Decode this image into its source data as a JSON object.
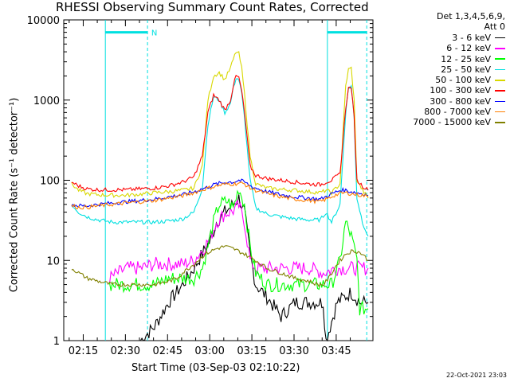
{
  "chart_data": {
    "type": "line",
    "title": "RHESSI Observing Summary Count Rates, Corrected",
    "detector_note_1": "Det 1,3,4,5,6,9,",
    "detector_note_2": "Att 0",
    "xlabel": "Start Time (03-Sep-03 02:10:22)",
    "ylabel": "Corrected Count Rate (s⁻¹ detector⁻¹)",
    "timestamp": "22-Oct-2021 23:03",
    "y_scale": "log",
    "ylim": [
      1,
      10000
    ],
    "xlim_minutes": [
      2.3,
      50.0
    ],
    "y_ticks": [
      {
        "value": 1,
        "label": "1"
      },
      {
        "value": 10,
        "label": "10"
      },
      {
        "value": 100,
        "label": "100"
      },
      {
        "value": 1000,
        "label": "1000"
      },
      {
        "value": 10000,
        "label": "10000"
      }
    ],
    "x_ticks": [
      {
        "minute": 15,
        "label": "02:15"
      },
      {
        "minute": 30,
        "label": "02:30"
      },
      {
        "minute": 45,
        "label": "02:45"
      },
      {
        "minute": 60,
        "label": "03:00"
      },
      {
        "minute": 75,
        "label": "03:15"
      },
      {
        "minute": 90,
        "label": "03:30"
      },
      {
        "minute": 105,
        "label": "03:45"
      }
    ],
    "annotations": [
      {
        "text": "N",
        "minute": 28
      }
    ],
    "markers": {
      "dashed_cyan_minutes": [
        27.5,
        105.5
      ],
      "solid_cyan_minutes": [
        12.5,
        91.5
      ],
      "bars_y": 7000,
      "bars_minutes": [
        [
          12.5,
          27.5
        ],
        [
          91.5,
          105.5
        ]
      ]
    },
    "series": [
      {
        "name": "3 - 6 keV",
        "color": "#000000",
        "points": [
          [
            25,
            1
          ],
          [
            30,
            1.5
          ],
          [
            35,
            3
          ],
          [
            40,
            5
          ],
          [
            44,
            8
          ],
          [
            48,
            14
          ],
          [
            50,
            18
          ],
          [
            52,
            30
          ],
          [
            55,
            40
          ],
          [
            58,
            50
          ],
          [
            60,
            60
          ],
          [
            62,
            40
          ],
          [
            64,
            12
          ],
          [
            66,
            5
          ],
          [
            70,
            3.5
          ],
          [
            75,
            2
          ],
          [
            80,
            3
          ],
          [
            85,
            3
          ],
          [
            90,
            3
          ],
          [
            91,
            1
          ],
          [
            95,
            3
          ],
          [
            100,
            4
          ],
          [
            103,
            3
          ],
          [
            106,
            3
          ]
        ]
      },
      {
        "name": "6 - 12 keV",
        "color": "#ff00ff",
        "points": [
          [
            14,
            6
          ],
          [
            20,
            8
          ],
          [
            25,
            8
          ],
          [
            30,
            9
          ],
          [
            35,
            9
          ],
          [
            40,
            9
          ],
          [
            44,
            10
          ],
          [
            48,
            15
          ],
          [
            50,
            20
          ],
          [
            52,
            30
          ],
          [
            55,
            38
          ],
          [
            58,
            42
          ],
          [
            60,
            48
          ],
          [
            62,
            30
          ],
          [
            64,
            10
          ],
          [
            66,
            8
          ],
          [
            70,
            8
          ],
          [
            75,
            8
          ],
          [
            80,
            8
          ],
          [
            85,
            8
          ],
          [
            90,
            7
          ],
          [
            95,
            8
          ],
          [
            100,
            8
          ],
          [
            104,
            8
          ],
          [
            106,
            8
          ]
        ]
      },
      {
        "name": "12 - 25 keV",
        "color": "#00ff00",
        "points": [
          [
            14,
            5
          ],
          [
            20,
            5
          ],
          [
            25,
            5
          ],
          [
            30,
            5
          ],
          [
            35,
            6
          ],
          [
            40,
            6
          ],
          [
            44,
            6
          ],
          [
            47,
            8
          ],
          [
            49,
            15
          ],
          [
            51,
            30
          ],
          [
            53,
            50
          ],
          [
            56,
            55
          ],
          [
            58,
            45
          ],
          [
            60,
            80
          ],
          [
            62,
            50
          ],
          [
            64,
            15
          ],
          [
            66,
            7
          ],
          [
            70,
            5
          ],
          [
            75,
            5
          ],
          [
            80,
            5
          ],
          [
            85,
            5
          ],
          [
            90,
            5
          ],
          [
            93,
            5
          ],
          [
            96,
            10
          ],
          [
            98,
            30
          ],
          [
            100,
            20
          ],
          [
            102,
            10
          ],
          [
            103,
            2.5
          ],
          [
            106,
            2.5
          ]
        ]
      },
      {
        "name": "25 - 50 keV",
        "color": "#00e0e0",
        "points": [
          [
            0.5,
            50
          ],
          [
            3,
            40
          ],
          [
            6,
            35
          ],
          [
            10,
            32
          ],
          [
            15,
            30
          ],
          [
            20,
            30
          ],
          [
            25,
            30
          ],
          [
            30,
            30
          ],
          [
            35,
            31
          ],
          [
            40,
            33
          ],
          [
            44,
            40
          ],
          [
            47,
            80
          ],
          [
            49,
            500
          ],
          [
            51,
            1100
          ],
          [
            53,
            1000
          ],
          [
            55,
            700
          ],
          [
            57,
            900
          ],
          [
            58,
            1400
          ],
          [
            59,
            1900
          ],
          [
            60,
            1800
          ],
          [
            61,
            1200
          ],
          [
            62,
            600
          ],
          [
            64,
            100
          ],
          [
            66,
            45
          ],
          [
            70,
            38
          ],
          [
            75,
            35
          ],
          [
            80,
            33
          ],
          [
            85,
            32
          ],
          [
            89,
            32
          ],
          [
            91,
            40
          ],
          [
            93,
            30
          ],
          [
            96,
            50
          ],
          [
            98,
            700
          ],
          [
            99,
            1400
          ],
          [
            100,
            1500
          ],
          [
            101,
            600
          ],
          [
            102,
            60
          ],
          [
            104,
            30
          ],
          [
            106,
            20
          ]
        ]
      },
      {
        "name": "50 - 100 keV",
        "color": "#d8d800",
        "points": [
          [
            0.5,
            90
          ],
          [
            3,
            75
          ],
          [
            6,
            68
          ],
          [
            10,
            66
          ],
          [
            15,
            65
          ],
          [
            20,
            65
          ],
          [
            25,
            67
          ],
          [
            30,
            70
          ],
          [
            35,
            72
          ],
          [
            40,
            75
          ],
          [
            44,
            80
          ],
          [
            47,
            150
          ],
          [
            49,
            1000
          ],
          [
            51,
            2000
          ],
          [
            53,
            2200
          ],
          [
            55,
            1800
          ],
          [
            57,
            2500
          ],
          [
            58,
            3200
          ],
          [
            59,
            4000
          ],
          [
            60,
            3800
          ],
          [
            61,
            2500
          ],
          [
            62,
            1200
          ],
          [
            64,
            200
          ],
          [
            66,
            90
          ],
          [
            70,
            80
          ],
          [
            75,
            77
          ],
          [
            80,
            75
          ],
          [
            85,
            72
          ],
          [
            89,
            70
          ],
          [
            91,
            75
          ],
          [
            93,
            70
          ],
          [
            96,
            90
          ],
          [
            98,
            1500
          ],
          [
            99,
            2400
          ],
          [
            100,
            2500
          ],
          [
            101,
            1000
          ],
          [
            102,
            100
          ],
          [
            104,
            75
          ],
          [
            106,
            60
          ]
        ]
      },
      {
        "name": "100 - 300 keV",
        "color": "#ff0000",
        "points": [
          [
            0.5,
            95
          ],
          [
            3,
            85
          ],
          [
            6,
            78
          ],
          [
            10,
            76
          ],
          [
            15,
            76
          ],
          [
            20,
            76
          ],
          [
            25,
            78
          ],
          [
            30,
            80
          ],
          [
            35,
            85
          ],
          [
            40,
            95
          ],
          [
            44,
            110
          ],
          [
            47,
            200
          ],
          [
            49,
            700
          ],
          [
            51,
            1150
          ],
          [
            53,
            1000
          ],
          [
            55,
            750
          ],
          [
            57,
            1000
          ],
          [
            58,
            1500
          ],
          [
            59,
            2000
          ],
          [
            60,
            1900
          ],
          [
            61,
            1300
          ],
          [
            62,
            700
          ],
          [
            64,
            150
          ],
          [
            66,
            115
          ],
          [
            70,
            105
          ],
          [
            75,
            100
          ],
          [
            80,
            95
          ],
          [
            85,
            90
          ],
          [
            89,
            88
          ],
          [
            91,
            95
          ],
          [
            93,
            100
          ],
          [
            96,
            120
          ],
          [
            98,
            800
          ],
          [
            99,
            1400
          ],
          [
            100,
            1450
          ],
          [
            101,
            600
          ],
          [
            102,
            100
          ],
          [
            104,
            85
          ],
          [
            106,
            75
          ]
        ]
      },
      {
        "name": "300 - 800 keV",
        "color": "#0000ff",
        "points": [
          [
            0.5,
            50
          ],
          [
            3,
            48
          ],
          [
            6,
            48
          ],
          [
            10,
            50
          ],
          [
            15,
            52
          ],
          [
            20,
            54
          ],
          [
            25,
            56
          ],
          [
            30,
            58
          ],
          [
            35,
            62
          ],
          [
            40,
            66
          ],
          [
            44,
            72
          ],
          [
            48,
            80
          ],
          [
            52,
            90
          ],
          [
            56,
            95
          ],
          [
            58,
            95
          ],
          [
            60,
            100
          ],
          [
            62,
            95
          ],
          [
            64,
            85
          ],
          [
            66,
            80
          ],
          [
            70,
            72
          ],
          [
            75,
            66
          ],
          [
            80,
            62
          ],
          [
            85,
            60
          ],
          [
            89,
            58
          ],
          [
            90,
            60
          ],
          [
            92,
            65
          ],
          [
            94,
            70
          ],
          [
            96,
            75
          ],
          [
            98,
            75
          ],
          [
            100,
            72
          ],
          [
            102,
            70
          ],
          [
            104,
            68
          ],
          [
            106,
            65
          ]
        ]
      },
      {
        "name": "800 - 7000 keV",
        "color": "#ff8000",
        "points": [
          [
            0.5,
            48
          ],
          [
            3,
            46
          ],
          [
            6,
            46
          ],
          [
            10,
            48
          ],
          [
            15,
            50
          ],
          [
            20,
            52
          ],
          [
            25,
            54
          ],
          [
            30,
            56
          ],
          [
            35,
            60
          ],
          [
            40,
            64
          ],
          [
            44,
            70
          ],
          [
            48,
            78
          ],
          [
            52,
            85
          ],
          [
            56,
            90
          ],
          [
            58,
            90
          ],
          [
            60,
            92
          ],
          [
            62,
            90
          ],
          [
            64,
            80
          ],
          [
            66,
            75
          ],
          [
            70,
            68
          ],
          [
            75,
            62
          ],
          [
            80,
            58
          ],
          [
            85,
            56
          ],
          [
            89,
            54
          ],
          [
            90,
            56
          ],
          [
            92,
            60
          ],
          [
            94,
            65
          ],
          [
            96,
            68
          ],
          [
            98,
            70
          ],
          [
            100,
            68
          ],
          [
            102,
            66
          ],
          [
            104,
            65
          ],
          [
            106,
            62
          ]
        ]
      },
      {
        "name": "7000 - 15000 keV",
        "color": "#808000",
        "points": [
          [
            0.5,
            8
          ],
          [
            3,
            7
          ],
          [
            6,
            6
          ],
          [
            10,
            5.5
          ],
          [
            15,
            5
          ],
          [
            20,
            5
          ],
          [
            25,
            5
          ],
          [
            30,
            5
          ],
          [
            35,
            5.5
          ],
          [
            38,
            6
          ],
          [
            40,
            7
          ],
          [
            44,
            9
          ],
          [
            48,
            12
          ],
          [
            52,
            14
          ],
          [
            55,
            15
          ],
          [
            58,
            14
          ],
          [
            60,
            13
          ],
          [
            62,
            12
          ],
          [
            64,
            11
          ],
          [
            66,
            10
          ],
          [
            70,
            8
          ],
          [
            75,
            7
          ],
          [
            80,
            6
          ],
          [
            85,
            5.5
          ],
          [
            88,
            5
          ],
          [
            90,
            5
          ],
          [
            92,
            6
          ],
          [
            94,
            8
          ],
          [
            96,
            10
          ],
          [
            98,
            12
          ],
          [
            100,
            13
          ],
          [
            102,
            13
          ],
          [
            104,
            12
          ],
          [
            106,
            10
          ]
        ]
      }
    ]
  }
}
